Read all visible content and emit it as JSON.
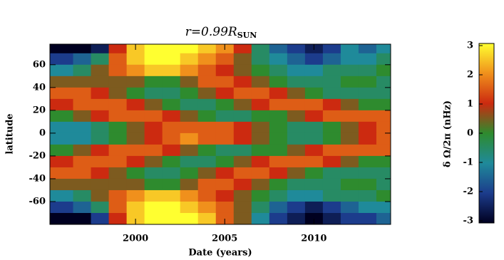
{
  "chart_data": {
    "type": "heatmap",
    "title": "r=0.99R",
    "title_subscript": "SUN",
    "xlabel": "Date (years)",
    "ylabel": "latitude",
    "colorbar_label": "δ Ω/2π (nHz)",
    "x": [
      1996,
      1997,
      1998,
      1999,
      2000,
      2001,
      2002,
      2003,
      2004,
      2005,
      2006,
      2007,
      2008,
      2009,
      2010,
      2011,
      2012,
      2013,
      2014
    ],
    "y": [
      75,
      65,
      55,
      45,
      35,
      25,
      15,
      5,
      -5,
      -15,
      -25,
      -35,
      -45,
      -55,
      -65,
      -75
    ],
    "z": [
      [
        -3,
        -3,
        -2.5,
        1,
        2.5,
        3,
        3,
        3,
        2.5,
        2,
        1,
        -0.5,
        -1.5,
        -2,
        -2.5,
        -2,
        -1,
        -1.5,
        -1
      ],
      [
        -2,
        -1.5,
        -0.5,
        1.5,
        2.5,
        3,
        3,
        2.5,
        2,
        1.5,
        0.5,
        -0.5,
        -1,
        -1.5,
        -2,
        -1.5,
        -1,
        -1,
        -0.5
      ],
      [
        -1,
        -0.5,
        0.5,
        1.5,
        2,
        2.5,
        2.5,
        2,
        1.5,
        1,
        0.5,
        0,
        -0.5,
        -1,
        -1,
        -0.5,
        -0.5,
        -0.5,
        0
      ],
      [
        0.5,
        0.5,
        0.5,
        0.5,
        0.5,
        0,
        0,
        0.5,
        1.5,
        1.5,
        1,
        0.5,
        0,
        -0.5,
        -0.5,
        -0.5,
        0,
        0,
        -0.5
      ],
      [
        1.5,
        1.5,
        1,
        0.5,
        0,
        -0.5,
        -0.5,
        0,
        0.5,
        1,
        1.5,
        1.5,
        1,
        0.5,
        0,
        -0.5,
        -0.5,
        -0.5,
        -0.5
      ],
      [
        1,
        1.5,
        1.5,
        1.5,
        1,
        0.5,
        0,
        -0.5,
        -0.5,
        0,
        0.5,
        1,
        1.5,
        1.5,
        1.5,
        1,
        0.5,
        0,
        0
      ],
      [
        0,
        0.5,
        1,
        1.5,
        1.5,
        1.5,
        1,
        0.5,
        0,
        -0.5,
        -0.5,
        0,
        0,
        0.5,
        1,
        1.5,
        1.5,
        1.5,
        1.5
      ],
      [
        -1,
        -1,
        -0.5,
        0,
        0.5,
        1,
        1.5,
        1.5,
        1.5,
        1.5,
        1,
        0.5,
        0,
        -0.5,
        -0.5,
        0,
        0.5,
        1,
        1.5
      ],
      [
        -1,
        -1,
        -0.5,
        0,
        0.5,
        1,
        1.5,
        2,
        1.5,
        1.5,
        1,
        0.5,
        0,
        -0.5,
        -0.5,
        0,
        0.5,
        1,
        1.5
      ],
      [
        0,
        0.5,
        1,
        1.5,
        1.5,
        1.5,
        1,
        0.5,
        0,
        -0.5,
        -0.5,
        0,
        0,
        0.5,
        1,
        1.5,
        1.5,
        1.5,
        1.5
      ],
      [
        1,
        1.5,
        1.5,
        1.5,
        1,
        0.5,
        0,
        -0.5,
        -0.5,
        0,
        0.5,
        1,
        1.5,
        1.5,
        1.5,
        1,
        0.5,
        0,
        0
      ],
      [
        1.5,
        1.5,
        1,
        0.5,
        0,
        -0.5,
        -0.5,
        0,
        0.5,
        1,
        1.5,
        1.5,
        1,
        0.5,
        0,
        -0.5,
        -0.5,
        -0.5,
        -0.5
      ],
      [
        0.5,
        0.5,
        0.5,
        0.5,
        0.5,
        0,
        0,
        0.5,
        1.5,
        1.5,
        1,
        0.5,
        0,
        -0.5,
        -0.5,
        -0.5,
        0,
        0,
        -0.5
      ],
      [
        -1,
        -0.5,
        0.5,
        1.5,
        2,
        2.5,
        2.5,
        2,
        1.5,
        1,
        0.5,
        0,
        -0.5,
        -1,
        -1,
        -0.5,
        -0.5,
        -0.5,
        0
      ],
      [
        -2,
        -1.5,
        -0.5,
        1.5,
        2.5,
        3,
        3,
        2.5,
        2,
        1.5,
        0.5,
        -0.5,
        -1.5,
        -2,
        -2.5,
        -2,
        -1.5,
        -1,
        -1
      ],
      [
        -3,
        -3,
        -2,
        1,
        2.5,
        3,
        3,
        3,
        2.5,
        1.5,
        0.5,
        -1,
        -2,
        -2.5,
        -3,
        -2.5,
        -2,
        -2,
        -1.5
      ]
    ],
    "xlim": [
      1995.2,
      2014.3
    ],
    "ylim": [
      -80,
      78
    ],
    "xticks": [
      2000,
      2005,
      2010
    ],
    "yticks": [
      -60,
      -40,
      -20,
      0,
      20,
      40,
      60
    ],
    "clim": [
      -3,
      3
    ],
    "cticks": [
      -3,
      -2,
      -1,
      0,
      1,
      2,
      3
    ],
    "colorscale": [
      "#000020",
      "#1c3c8c",
      "#1f8a9a",
      "#2e8b2e",
      "#cc2a10",
      "#f0901c",
      "#ffff30"
    ]
  }
}
